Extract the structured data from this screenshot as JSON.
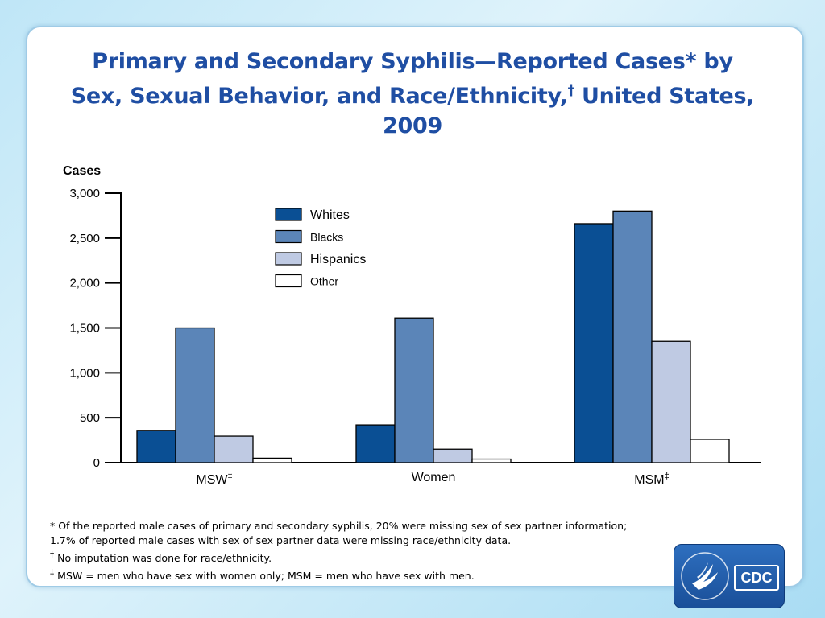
{
  "title": {
    "line1": "Primary and Secondary Syphilis—Reported Cases* by",
    "line2": "Sex, Sexual Behavior, and Race/Ethnicity,",
    "line2_mark": "†",
    "line2_end": " United States,",
    "line3": "2009"
  },
  "chart_data": {
    "type": "bar",
    "ylabel": "Cases",
    "ylim": [
      0,
      3000
    ],
    "yticks": [
      0,
      500,
      1000,
      1500,
      2000,
      2500,
      3000
    ],
    "ytick_labels": [
      "0",
      "500",
      "1,000",
      "1,500",
      "2,000",
      "2,500",
      "3,000"
    ],
    "categories": [
      "MSW",
      "Women",
      "MSM"
    ],
    "category_marks": [
      "‡",
      "",
      "‡"
    ],
    "legend_position": "top-center",
    "grid": false,
    "series": [
      {
        "name": "Whites",
        "color": "#0a4f94",
        "values": [
          360,
          420,
          2660
        ]
      },
      {
        "name": "Blacks",
        "color": "#5b85b8",
        "values": [
          1500,
          1610,
          2800
        ]
      },
      {
        "name": "Hispanics",
        "color": "#bfcae3",
        "values": [
          295,
          150,
          1350
        ]
      },
      {
        "name": "Other",
        "color": "#ffffff",
        "values": [
          50,
          40,
          260
        ]
      }
    ]
  },
  "footnotes": {
    "line1": "* Of the reported male cases of primary and secondary syphilis, 20% were missing sex of sex partner information;",
    "line2": "1.7% of reported male cases with sex of sex partner data were missing race/ethnicity data.",
    "line3_mark": "†",
    "line3": " No imputation was done for race/ethnicity.",
    "line4_mark": "‡",
    "line4": " MSW = men who have sex with women only; MSM = men who have sex with men."
  },
  "logo": {
    "text": "CDC",
    "icon": "hhs-eagle-icon"
  }
}
